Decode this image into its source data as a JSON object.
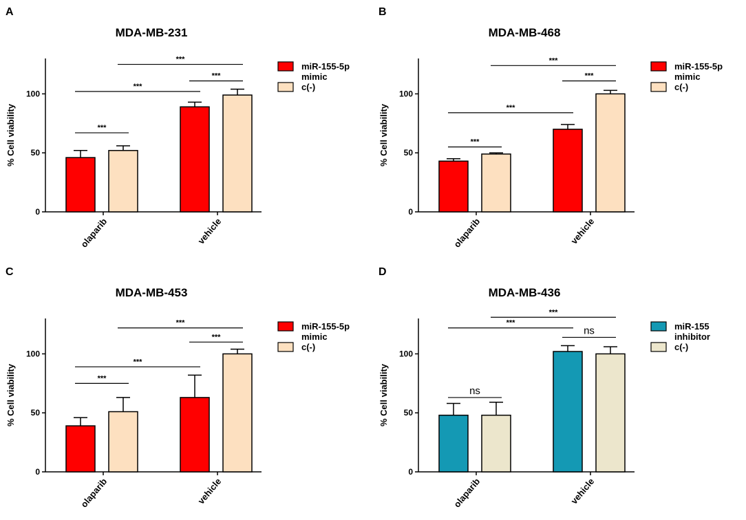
{
  "chart_data": [
    {
      "type": "bar",
      "panel": "A",
      "title": "MDA-MB-231",
      "xlabel": "",
      "ylabel": "% Cell viability",
      "ylim": [
        0,
        130
      ],
      "yticks": [
        0,
        50,
        100
      ],
      "categories": [
        "olaparib",
        "vehicle"
      ],
      "series": [
        {
          "name": "miR-155-5p mimic",
          "legend": [
            "miR-155-5p",
            "mimic"
          ],
          "color": "#ff0000",
          "values": [
            46,
            89
          ],
          "errors": [
            6,
            4
          ]
        },
        {
          "name": "c(-)",
          "legend": [
            "c(-)"
          ],
          "color": "#fde0c0",
          "values": [
            52,
            99
          ],
          "errors": [
            4,
            5
          ]
        }
      ],
      "significance": [
        {
          "from": [
            0,
            0
          ],
          "to": [
            0,
            1
          ],
          "label": "***",
          "y": 67
        },
        {
          "from": [
            0,
            0
          ],
          "to": [
            1,
            0
          ],
          "label": "***",
          "y": 102
        },
        {
          "from": [
            1,
            0
          ],
          "to": [
            1,
            1
          ],
          "label": "***",
          "y": 111
        },
        {
          "from": [
            0,
            1
          ],
          "to": [
            1,
            1
          ],
          "label": "***",
          "y": 125
        }
      ]
    },
    {
      "type": "bar",
      "panel": "B",
      "title": "MDA-MB-468",
      "xlabel": "",
      "ylabel": "% Cell viability",
      "ylim": [
        0,
        130
      ],
      "yticks": [
        0,
        50,
        100
      ],
      "categories": [
        "olaparib",
        "vehicle"
      ],
      "series": [
        {
          "name": "miR-155-5p mimic",
          "legend": [
            "miR-155-5p",
            "mimic"
          ],
          "color": "#ff0000",
          "values": [
            43,
            70
          ],
          "errors": [
            2,
            4
          ]
        },
        {
          "name": "c(-)",
          "legend": [
            "c(-)"
          ],
          "color": "#fde0c0",
          "values": [
            49,
            100
          ],
          "errors": [
            1,
            3
          ]
        }
      ],
      "significance": [
        {
          "from": [
            0,
            0
          ],
          "to": [
            0,
            1
          ],
          "label": "***",
          "y": 55
        },
        {
          "from": [
            0,
            0
          ],
          "to": [
            1,
            0
          ],
          "label": "***",
          "y": 84
        },
        {
          "from": [
            1,
            0
          ],
          "to": [
            1,
            1
          ],
          "label": "***",
          "y": 111
        },
        {
          "from": [
            0,
            1
          ],
          "to": [
            1,
            1
          ],
          "label": "***",
          "y": 124
        }
      ]
    },
    {
      "type": "bar",
      "panel": "C",
      "title": "MDA-MB-453",
      "xlabel": "",
      "ylabel": "% Cell viability",
      "ylim": [
        0,
        130
      ],
      "yticks": [
        0,
        50,
        100
      ],
      "categories": [
        "olaparib",
        "vehicle"
      ],
      "series": [
        {
          "name": "miR-155-5p mimic",
          "legend": [
            "miR-155-5p",
            "mimic"
          ],
          "color": "#ff0000",
          "values": [
            39,
            63
          ],
          "errors": [
            7,
            19
          ]
        },
        {
          "name": "c(-)",
          "legend": [
            "c(-)"
          ],
          "color": "#fde0c0",
          "values": [
            51,
            100
          ],
          "errors": [
            12,
            4
          ]
        }
      ],
      "significance": [
        {
          "from": [
            0,
            0
          ],
          "to": [
            0,
            1
          ],
          "label": "***",
          "y": 75
        },
        {
          "from": [
            0,
            0
          ],
          "to": [
            1,
            0
          ],
          "label": "***",
          "y": 89
        },
        {
          "from": [
            1,
            0
          ],
          "to": [
            1,
            1
          ],
          "label": "***",
          "y": 110
        },
        {
          "from": [
            0,
            1
          ],
          "to": [
            1,
            1
          ],
          "label": "***",
          "y": 122
        }
      ]
    },
    {
      "type": "bar",
      "panel": "D",
      "title": "MDA-MB-436",
      "xlabel": "",
      "ylabel": "% Cell viability",
      "ylim": [
        0,
        130
      ],
      "yticks": [
        0,
        50,
        100
      ],
      "categories": [
        "olaparib",
        "vehicle"
      ],
      "series": [
        {
          "name": "miR-155 inhibitor",
          "legend": [
            "miR-155",
            "inhibitor"
          ],
          "color": "#1499b4",
          "values": [
            48,
            102
          ],
          "errors": [
            10,
            5
          ]
        },
        {
          "name": "c(-)",
          "legend": [
            "c(-)"
          ],
          "color": "#ece6cc",
          "values": [
            48,
            100
          ],
          "errors": [
            11,
            6
          ]
        }
      ],
      "significance": [
        {
          "from": [
            0,
            0
          ],
          "to": [
            0,
            1
          ],
          "label": "ns",
          "y": 63
        },
        {
          "from": [
            0,
            0
          ],
          "to": [
            1,
            0
          ],
          "label": "***",
          "y": 122
        },
        {
          "from": [
            1,
            0
          ],
          "to": [
            1,
            1
          ],
          "label": "ns",
          "y": 114
        },
        {
          "from": [
            0,
            1
          ],
          "to": [
            1,
            1
          ],
          "label": "***",
          "y": 131
        }
      ]
    }
  ]
}
